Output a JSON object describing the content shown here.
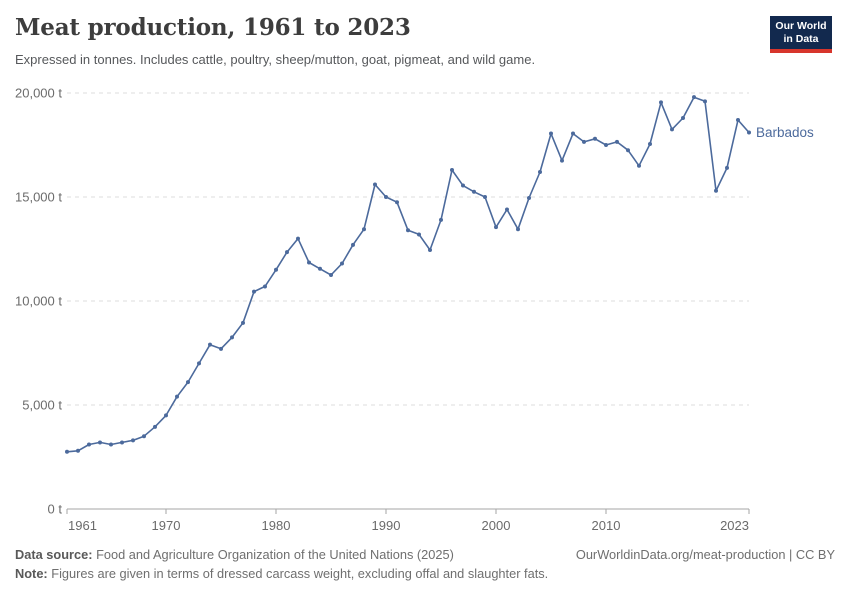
{
  "header": {
    "title": "Meat production, 1961 to 2023",
    "subtitle": "Expressed in tonnes. Includes cattle, poultry, sheep/mutton, goat, pigmeat, and wild game."
  },
  "logo": {
    "line1": "Our World",
    "line2": "in Data",
    "bg_color": "#12294e",
    "accent_color": "#d7352c"
  },
  "footer": {
    "source_label": "Data source:",
    "source_text": " Food and Agriculture Organization of the United Nations (2025)",
    "link_text": "OurWorldinData.org/meat-production | CC BY",
    "note_label": "Note:",
    "note_text": " Figures are given in terms of dressed carcass weight, excluding offal and slaughter fats."
  },
  "chart_data": {
    "type": "line",
    "title": "Meat production, 1961 to 2023",
    "entity": "Barbados",
    "unit": "t",
    "xlim": [
      1961,
      2023
    ],
    "ylim": [
      0,
      20000
    ],
    "grid": "horizontal-dashed",
    "legend_position": "end-of-line",
    "yticks": [
      0,
      5000,
      10000,
      15000,
      20000
    ],
    "ytick_labels": [
      "0 t",
      "5,000 t",
      "10,000 t",
      "15,000 t",
      "20,000 t"
    ],
    "xticks": [
      1961,
      1970,
      1980,
      1990,
      2000,
      2010,
      2023
    ],
    "colors": {
      "line": "#4C6A9C",
      "grid": "#dedede",
      "axis": "#a6a6a6",
      "tick_label": "#6b6b6b"
    },
    "series": [
      {
        "name": "Barbados",
        "color": "#4C6A9C",
        "x": [
          1961,
          1962,
          1963,
          1964,
          1965,
          1966,
          1967,
          1968,
          1969,
          1970,
          1971,
          1972,
          1973,
          1974,
          1975,
          1976,
          1977,
          1978,
          1979,
          1980,
          1981,
          1982,
          1983,
          1984,
          1985,
          1986,
          1987,
          1988,
          1989,
          1990,
          1991,
          1992,
          1993,
          1994,
          1995,
          1996,
          1997,
          1998,
          1999,
          2000,
          2001,
          2002,
          2003,
          2004,
          2005,
          2006,
          2007,
          2008,
          2009,
          2010,
          2011,
          2012,
          2013,
          2014,
          2015,
          2016,
          2017,
          2018,
          2019,
          2020,
          2021,
          2022,
          2023
        ],
        "values": [
          2750,
          2800,
          3100,
          3200,
          3100,
          3200,
          3300,
          3500,
          3950,
          4500,
          5400,
          6100,
          7000,
          7900,
          7700,
          8250,
          8950,
          10450,
          10700,
          11500,
          12350,
          13000,
          11850,
          11550,
          11250,
          11800,
          12700,
          13450,
          15600,
          15000,
          14750,
          13400,
          13200,
          12450,
          13900,
          16300,
          15550,
          15250,
          15000,
          13550,
          14400,
          13450,
          14950,
          16200,
          18050,
          16750,
          18050,
          17650,
          17800,
          17500,
          17650,
          17250,
          16500,
          17550,
          19550,
          18250,
          18800,
          19800,
          19600,
          15300,
          16400,
          18700,
          18100
        ]
      }
    ]
  }
}
